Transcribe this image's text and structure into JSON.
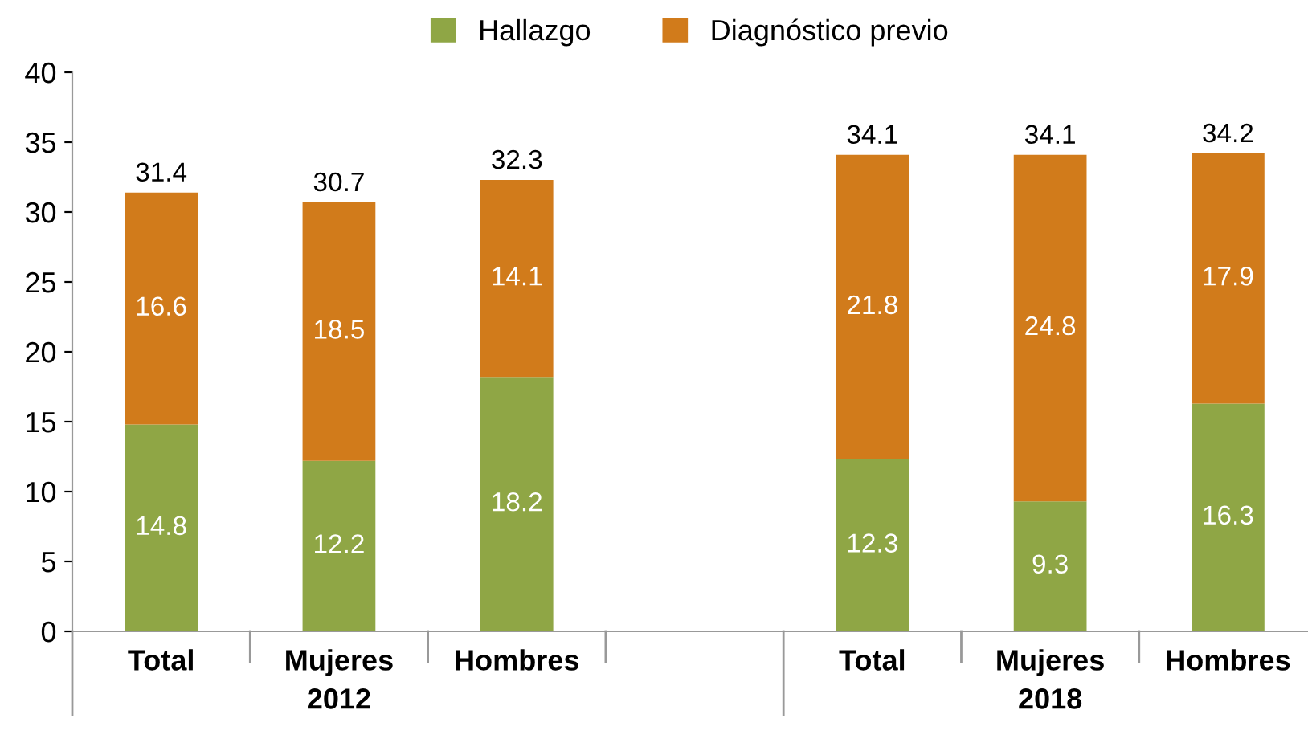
{
  "chart_data": {
    "type": "bar",
    "stacked": true,
    "categories": [
      "Total",
      "Mujeres",
      "Hombres",
      null,
      "Total",
      "Mujeres",
      "Hombres"
    ],
    "series": [
      {
        "name": "Hallazgo",
        "color": "#8fa645",
        "values": [
          14.8,
          12.2,
          18.2,
          null,
          12.3,
          9.3,
          16.3
        ]
      },
      {
        "name": "Diagnóstico previo",
        "color": "#d17b1b",
        "values": [
          16.6,
          18.5,
          14.1,
          null,
          21.8,
          24.8,
          17.9
        ]
      }
    ],
    "totals": [
      "31.4",
      "30.7",
      "32.3",
      null,
      "34.1",
      "34.1",
      "34.2"
    ],
    "annotations": [
      "2012",
      "2018"
    ],
    "ylim": [
      0,
      40
    ],
    "yticks": [
      0,
      5,
      10,
      15,
      20,
      25,
      30,
      35,
      40
    ],
    "data_labels": true,
    "grid": false,
    "legend": "top"
  }
}
